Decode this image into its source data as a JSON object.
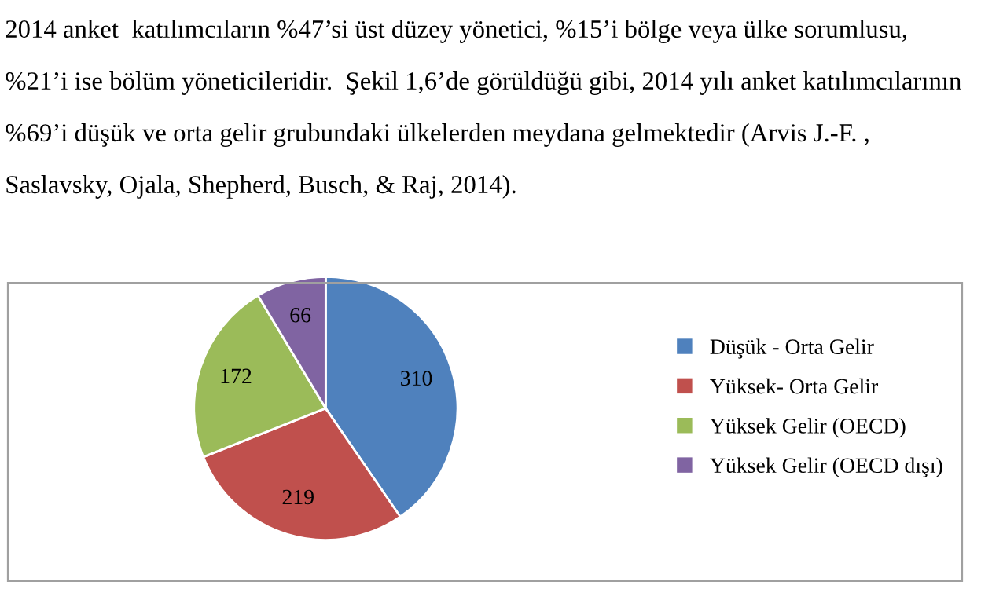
{
  "chart_data": {
    "type": "pie",
    "categories": [
      "Düşük - Orta Gelir",
      "Yüksek- Orta Gelir",
      "Yüksek Gelir (OECD)",
      "Yüksek Gelir (OECD dışı)"
    ],
    "values": [
      310,
      219,
      172,
      66
    ],
    "colors": [
      "#4f81bd",
      "#c0504d",
      "#9bbb59",
      "#8064a2"
    ],
    "data_labels": true,
    "legend": "right",
    "annotations": [
      "2014 anket  katılımcıların %47’si üst düzey yönetici, %15’i bölge veya ülke sorumlusu,",
      "%21’i ise bölüm yöneticileridir.  Şekil 1,6’de görüldüğü gibi, 2014 yılı anket katılımcılarının",
      "%69’i düşük ve orta gelir grubundaki ülkelerden meydana gelmektedir (Arvis J.-F. ,",
      "Saslavsky, Ojala, Shepherd, Busch, & Raj, 2014)."
    ]
  }
}
